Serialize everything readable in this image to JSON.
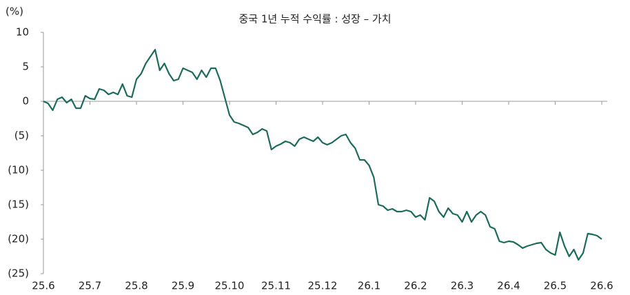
{
  "chart_data": {
    "type": "line",
    "title": "중국 1년 누적 수익률 : 성장 – 가치",
    "y_label": "(%)",
    "series": [
      {
        "name": "성장 – 가치",
        "color": "#1a6b5c",
        "values": [
          0,
          -0.3,
          -1.3,
          0.3,
          0.6,
          -0.2,
          0.3,
          -1.0,
          -1.0,
          0.8,
          0.4,
          0.3,
          1.8,
          1.6,
          1.0,
          1.3,
          1.0,
          2.5,
          0.8,
          0.6,
          3.2,
          4.0,
          5.5,
          6.5,
          7.5,
          4.5,
          5.5,
          4.0,
          3.0,
          3.2,
          4.8,
          4.5,
          4.2,
          3.2,
          4.5,
          3.5,
          4.8,
          4.8,
          3.0,
          0.5,
          -2.0,
          -3.0,
          -3.2,
          -3.5,
          -3.8,
          -4.8,
          -4.5,
          -4.0,
          -4.3,
          -7.0,
          -6.5,
          -6.2,
          -5.8,
          -6.0,
          -6.5,
          -5.5,
          -5.2,
          -5.5,
          -5.8,
          -5.2,
          -6.0,
          -6.3,
          -6.0,
          -5.5,
          -5.0,
          -4.8,
          -6.0,
          -6.8,
          -8.5,
          -8.5,
          -9.3,
          -11.0,
          -15.0,
          -15.2,
          -15.8,
          -15.6,
          -16.0,
          -16.0,
          -15.8,
          -16.0,
          -16.8,
          -16.5,
          -17.2,
          -14.0,
          -14.5,
          -16.0,
          -16.8,
          -15.5,
          -16.3,
          -16.5,
          -17.5,
          -16.0,
          -17.5,
          -16.5,
          -16.0,
          -16.5,
          -18.2,
          -18.5,
          -20.3,
          -20.5,
          -20.3,
          -20.4,
          -20.8,
          -21.3,
          -21.0,
          -20.8,
          -20.6,
          -20.5,
          -21.5,
          -22.0,
          -22.3,
          -19.0,
          -21.0,
          -22.5,
          -21.5,
          -23.0,
          -22.0,
          -19.2,
          -19.3,
          -19.5,
          -20.0
        ]
      }
    ],
    "xlim": [
      0,
      120
    ],
    "xticks": [
      {
        "value": 0,
        "label": "25.6"
      },
      {
        "value": 10,
        "label": "25.7"
      },
      {
        "value": 20,
        "label": "25.8"
      },
      {
        "value": 30,
        "label": "25.9"
      },
      {
        "value": 40,
        "label": "25.10"
      },
      {
        "value": 50,
        "label": "25.11"
      },
      {
        "value": 60,
        "label": "25.12"
      },
      {
        "value": 70,
        "label": "26.1"
      },
      {
        "value": 80,
        "label": "26.2"
      },
      {
        "value": 90,
        "label": "26.3"
      },
      {
        "value": 100,
        "label": "26.4"
      },
      {
        "value": 110,
        "label": "26.5"
      },
      {
        "value": 120,
        "label": "26.6"
      }
    ],
    "ylim": [
      -25,
      10
    ],
    "yticks": [
      10,
      5,
      0,
      {
        "value": -5,
        "label": "(5)"
      },
      {
        "value": -10,
        "label": "(10)"
      },
      {
        "value": -15,
        "label": "(15)"
      },
      {
        "value": -20,
        "label": "(20)"
      },
      {
        "value": -25,
        "label": "(25)"
      }
    ]
  }
}
